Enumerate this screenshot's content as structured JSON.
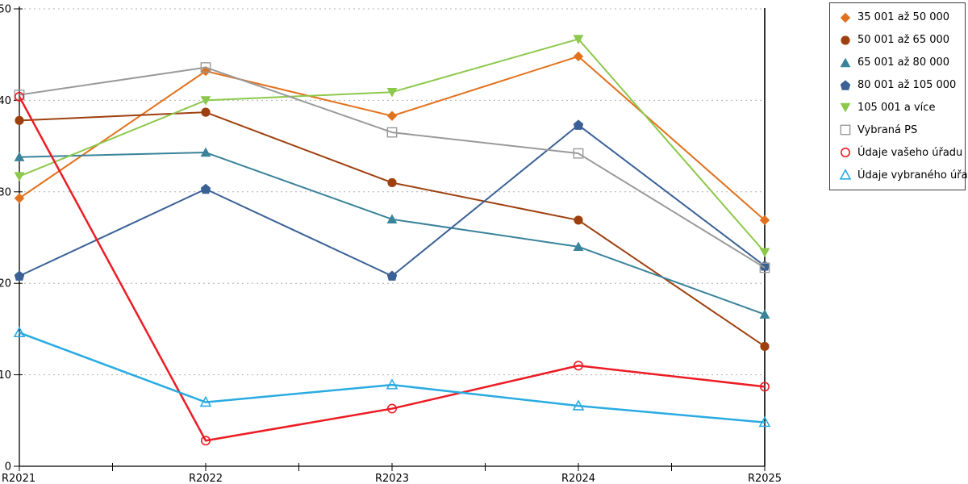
{
  "chart_data": {
    "type": "line",
    "title": "",
    "xlabel": "",
    "ylabel": "",
    "categories": [
      "R2021",
      "R2022",
      "R2023",
      "R2024",
      "R2025"
    ],
    "ylim": [
      0,
      50
    ],
    "yticks": [
      0,
      10,
      20,
      30,
      40,
      50
    ],
    "grid": "horizontal-dotted",
    "legend_position": "top-right-outside",
    "series": [
      {
        "name": "35 001 až 50 000",
        "marker": "diamond",
        "color": "#e2711d",
        "line_width": 2,
        "values": [
          29.3,
          43.2,
          38.3,
          44.8,
          26.9
        ]
      },
      {
        "name": "50 001 až 65 000",
        "marker": "circle",
        "color": "#9e400e",
        "line_width": 2,
        "values": [
          37.8,
          38.7,
          31.0,
          26.9,
          13.1
        ]
      },
      {
        "name": "65 001 až 80 000",
        "marker": "triangle-up",
        "color": "#39839b",
        "line_width": 2,
        "values": [
          33.8,
          34.3,
          27.0,
          24.0,
          16.6
        ]
      },
      {
        "name": "80 001 až 105 000",
        "marker": "pentagon",
        "color": "#3a6096",
        "line_width": 2,
        "values": [
          20.8,
          30.3,
          20.8,
          37.3,
          21.9
        ]
      },
      {
        "name": "105 001 a více",
        "marker": "triangle-down",
        "color": "#8cc84b",
        "line_width": 2,
        "values": [
          31.7,
          40.0,
          40.9,
          46.7,
          23.4
        ]
      },
      {
        "name": "Vybraná PS",
        "marker": "square-open",
        "color": "#9a9a9a",
        "line_width": 2,
        "values": [
          40.6,
          43.6,
          36.5,
          34.2,
          21.7
        ]
      },
      {
        "name": "Údaje vašeho úřadu",
        "marker": "circle-open",
        "color": "#ec1c24",
        "line_width": 2.5,
        "values": [
          40.4,
          2.8,
          6.3,
          11.0,
          8.7
        ]
      },
      {
        "name": "Údaje vybraného úřadu",
        "marker": "triangle-open",
        "color": "#29abe2",
        "line_width": 2.5,
        "values": [
          14.6,
          7.0,
          8.9,
          6.6,
          4.8
        ]
      }
    ]
  },
  "axes": {
    "y_tick_labels": [
      "0",
      "10",
      "20",
      "30",
      "40",
      "50"
    ],
    "x_tick_labels": [
      "R2021",
      "R2022",
      "R2023",
      "R2024",
      "R2025"
    ]
  },
  "style_colors": {
    "axis": "#000000",
    "gridline": "#b0b0b0",
    "background": "#ffffff",
    "legend_border": "#3c3c3c"
  }
}
